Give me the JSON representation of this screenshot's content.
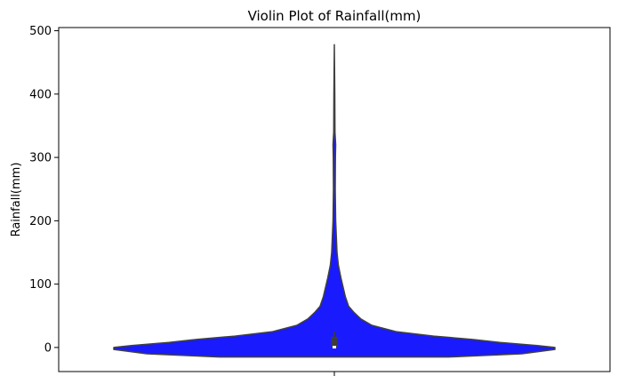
{
  "chart_data": {
    "type": "violin",
    "title": "Violin Plot of Rainfall(mm)",
    "xlabel": "",
    "ylabel": "Rainfall(mm)",
    "ylim": [
      -38,
      505
    ],
    "yticks": [
      0,
      100,
      200,
      300,
      400,
      500
    ],
    "ytick_labels": [
      "0",
      "100",
      "200",
      "300",
      "400",
      "500"
    ],
    "grid": false,
    "legend": "none",
    "series": [
      {
        "fill_color": "#1a1aff",
        "outline_color": "#404040",
        "density_profile": [
          [
            -15,
            0.52
          ],
          [
            -10,
            0.85
          ],
          [
            -3,
            1.0
          ],
          [
            0,
            1.0
          ],
          [
            3,
            0.92
          ],
          [
            8,
            0.75
          ],
          [
            13,
            0.62
          ],
          [
            18,
            0.45
          ],
          [
            25,
            0.28
          ],
          [
            35,
            0.17
          ],
          [
            45,
            0.12
          ],
          [
            55,
            0.09
          ],
          [
            65,
            0.065
          ],
          [
            80,
            0.05
          ],
          [
            95,
            0.04
          ],
          [
            110,
            0.03
          ],
          [
            130,
            0.018
          ],
          [
            150,
            0.012
          ],
          [
            200,
            0.006
          ],
          [
            250,
            0.004
          ],
          [
            300,
            0.005
          ],
          [
            320,
            0.006
          ],
          [
            340,
            0.003
          ],
          [
            400,
            0.002
          ],
          [
            478,
            0.0
          ]
        ],
        "box": {
          "q1": 0,
          "median": 0.5,
          "q3": 17,
          "whisker_low": 0,
          "whisker_high": 25
        }
      }
    ]
  }
}
